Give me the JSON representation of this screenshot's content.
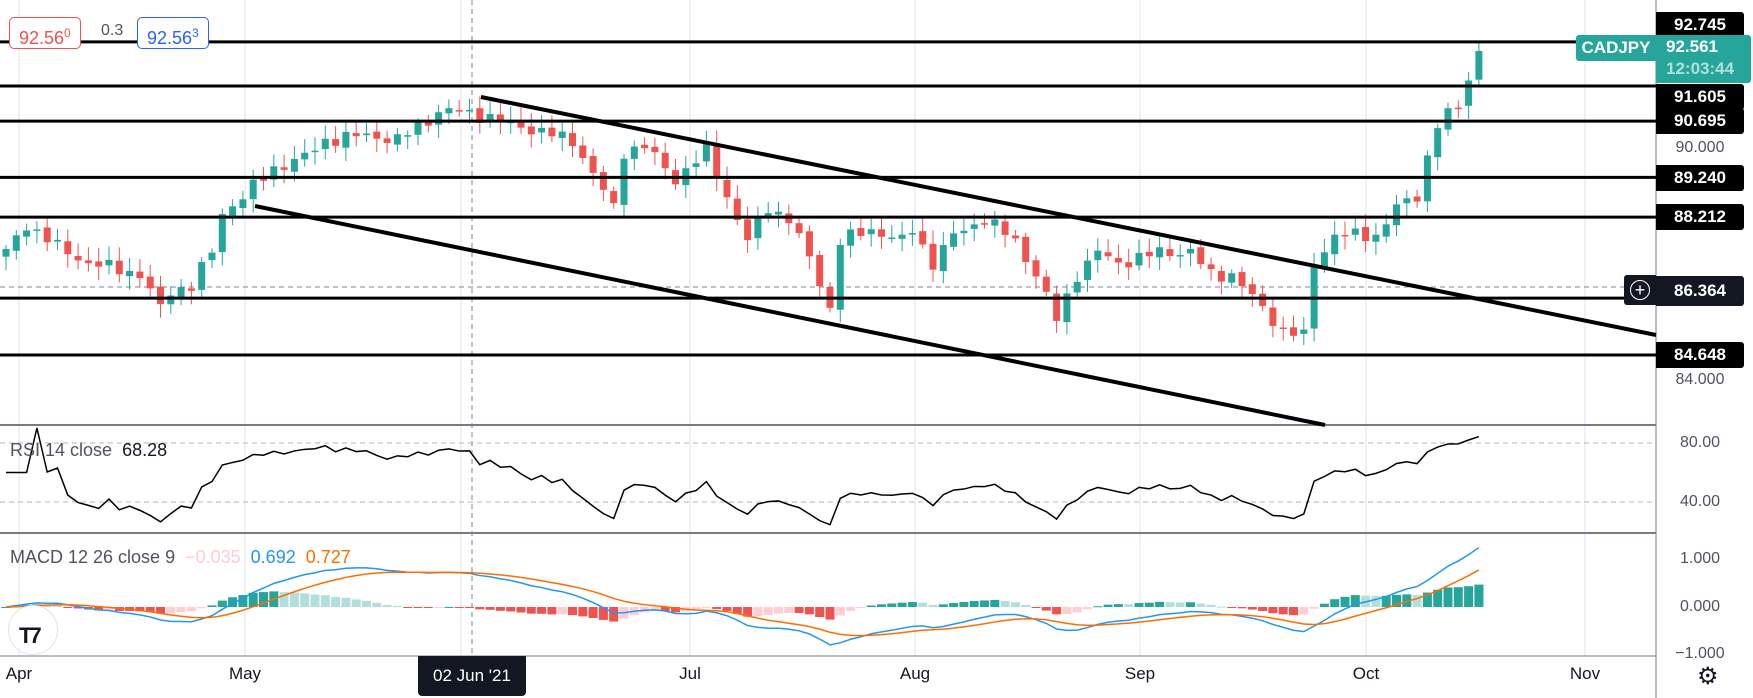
{
  "symbol": "CADJPY",
  "trade": {
    "sell_price": "92.56",
    "sell_sup": "0",
    "spread": "0.3",
    "buy_price": "92.56",
    "buy_sup": "3"
  },
  "current": {
    "price": "92.561",
    "countdown": "12:03:44"
  },
  "price_axis": {
    "levels": [
      {
        "label": "92.745",
        "value": 92.745
      },
      {
        "label": "91.605",
        "value": 91.605
      },
      {
        "label": "90.695",
        "value": 90.695
      },
      {
        "label": "89.240",
        "value": 89.24
      },
      {
        "label": "88.212",
        "value": 88.212
      },
      {
        "label": "84.648",
        "value": 84.648
      }
    ],
    "ticks": [
      "90.000",
      "84.000"
    ],
    "crosshair": "86.364"
  },
  "rsi": {
    "legend": "RSI 14 close",
    "value": "68.28",
    "ticks": [
      "80.00",
      "40.00"
    ]
  },
  "macd": {
    "legend": "MACD 12 26 close 9",
    "hist": "−0.035",
    "macd": "0.692",
    "signal": "0.727",
    "ticks": [
      "1.000",
      "0.000",
      "−1.000"
    ]
  },
  "time_axis": {
    "labels": [
      "Apr",
      "May",
      "Jul",
      "Aug",
      "Sep",
      "Oct",
      "Nov"
    ],
    "crosshair": "02 Jun '21"
  },
  "colors": {
    "up": "#26a69a",
    "down": "#ef5350",
    "macd": "#2196f3",
    "signal": "#ff6d00"
  },
  "chart_data": {
    "type": "candlestick",
    "ylim": [
      83.4,
      93.4
    ],
    "close_keyframes": [
      [
        0,
        87.31
      ],
      [
        2,
        88.03
      ],
      [
        5,
        87.45
      ],
      [
        8,
        87.02
      ],
      [
        11,
        86.87
      ],
      [
        13,
        86.73
      ],
      [
        15,
        85.86
      ],
      [
        16,
        86.3
      ],
      [
        18,
        86.44
      ],
      [
        20,
        87.31
      ],
      [
        21,
        88.32
      ],
      [
        23,
        88.75
      ],
      [
        26,
        89.48
      ],
      [
        29,
        89.77
      ],
      [
        31,
        90.2
      ],
      [
        35,
        90.34
      ],
      [
        38,
        90.2
      ],
      [
        42,
        90.92
      ],
      [
        44,
        90.98
      ],
      [
        47,
        90.78
      ],
      [
        51,
        90.49
      ],
      [
        55,
        90.2
      ],
      [
        57,
        89.33
      ],
      [
        59,
        88.46
      ],
      [
        60,
        89.91
      ],
      [
        62,
        90.05
      ],
      [
        65,
        89.19
      ],
      [
        68,
        89.91
      ],
      [
        70,
        88.75
      ],
      [
        72,
        87.6
      ],
      [
        74,
        88.46
      ],
      [
        76,
        88.17
      ],
      [
        78,
        87.16
      ],
      [
        80,
        85.86
      ],
      [
        81,
        87.6
      ],
      [
        84,
        87.89
      ],
      [
        87,
        87.6
      ],
      [
        88,
        87.89
      ],
      [
        90,
        87.02
      ],
      [
        92,
        87.74
      ],
      [
        95,
        88.17
      ],
      [
        98,
        87.6
      ],
      [
        100,
        86.73
      ],
      [
        102,
        85.57
      ],
      [
        104,
        86.73
      ],
      [
        106,
        87.31
      ],
      [
        108,
        87.02
      ],
      [
        112,
        87.31
      ],
      [
        115,
        87.31
      ],
      [
        117,
        86.73
      ],
      [
        119,
        86.73
      ],
      [
        121,
        86.15
      ],
      [
        124,
        85.28
      ],
      [
        126,
        85.14
      ],
      [
        127,
        87.02
      ],
      [
        129,
        87.74
      ],
      [
        131,
        87.74
      ],
      [
        133,
        87.74
      ],
      [
        135,
        88.46
      ],
      [
        137,
        88.75
      ],
      [
        138,
        89.77
      ],
      [
        139,
        90.63
      ],
      [
        141,
        91.07
      ],
      [
        142,
        91.79
      ],
      [
        143,
        92.51
      ]
    ],
    "horizontal_levels": [
      92.745,
      91.605,
      90.695,
      89.24,
      88.212,
      86.12,
      84.648
    ]
  }
}
